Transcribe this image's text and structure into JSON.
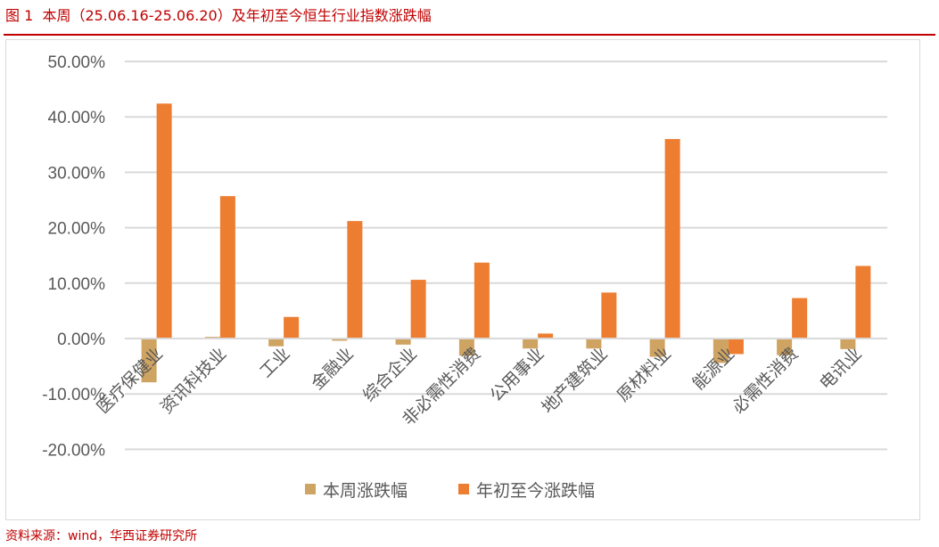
{
  "title": "图 1  本周（25.06.16-25.06.20）及年初至今恒生行业指数涨跌幅",
  "source": "资料来源：wind，华西证券研究所",
  "chart_data": {
    "type": "bar",
    "categories": [
      "医疗保健业",
      "资讯科技业",
      "工业",
      "金融业",
      "综合企业",
      "非必需性消费",
      "公用事业",
      "地产建筑业",
      "原材料业",
      "能源业",
      "必需性消费",
      "电讯业"
    ],
    "series": [
      {
        "name": "本周涨跌幅",
        "color": "#cfa462",
        "values": [
          -7.9,
          0.3,
          -1.4,
          -0.4,
          -1.1,
          -3.1,
          -1.8,
          -1.8,
          -3.3,
          -4.4,
          -3.0,
          -1.9
        ]
      },
      {
        "name": "年初至今涨跌幅",
        "color": "#ed7d31",
        "values": [
          42.4,
          25.7,
          3.9,
          21.2,
          10.6,
          13.7,
          0.9,
          8.3,
          36.0,
          -2.8,
          7.3,
          13.1
        ]
      }
    ],
    "yticks": [
      "50.00%",
      "40.00%",
      "30.00%",
      "20.00%",
      "10.00%",
      "0.00%",
      "-10.00%",
      "-20.00%"
    ],
    "ylim": [
      -20,
      50
    ],
    "grid": true,
    "legend": "bottom"
  }
}
